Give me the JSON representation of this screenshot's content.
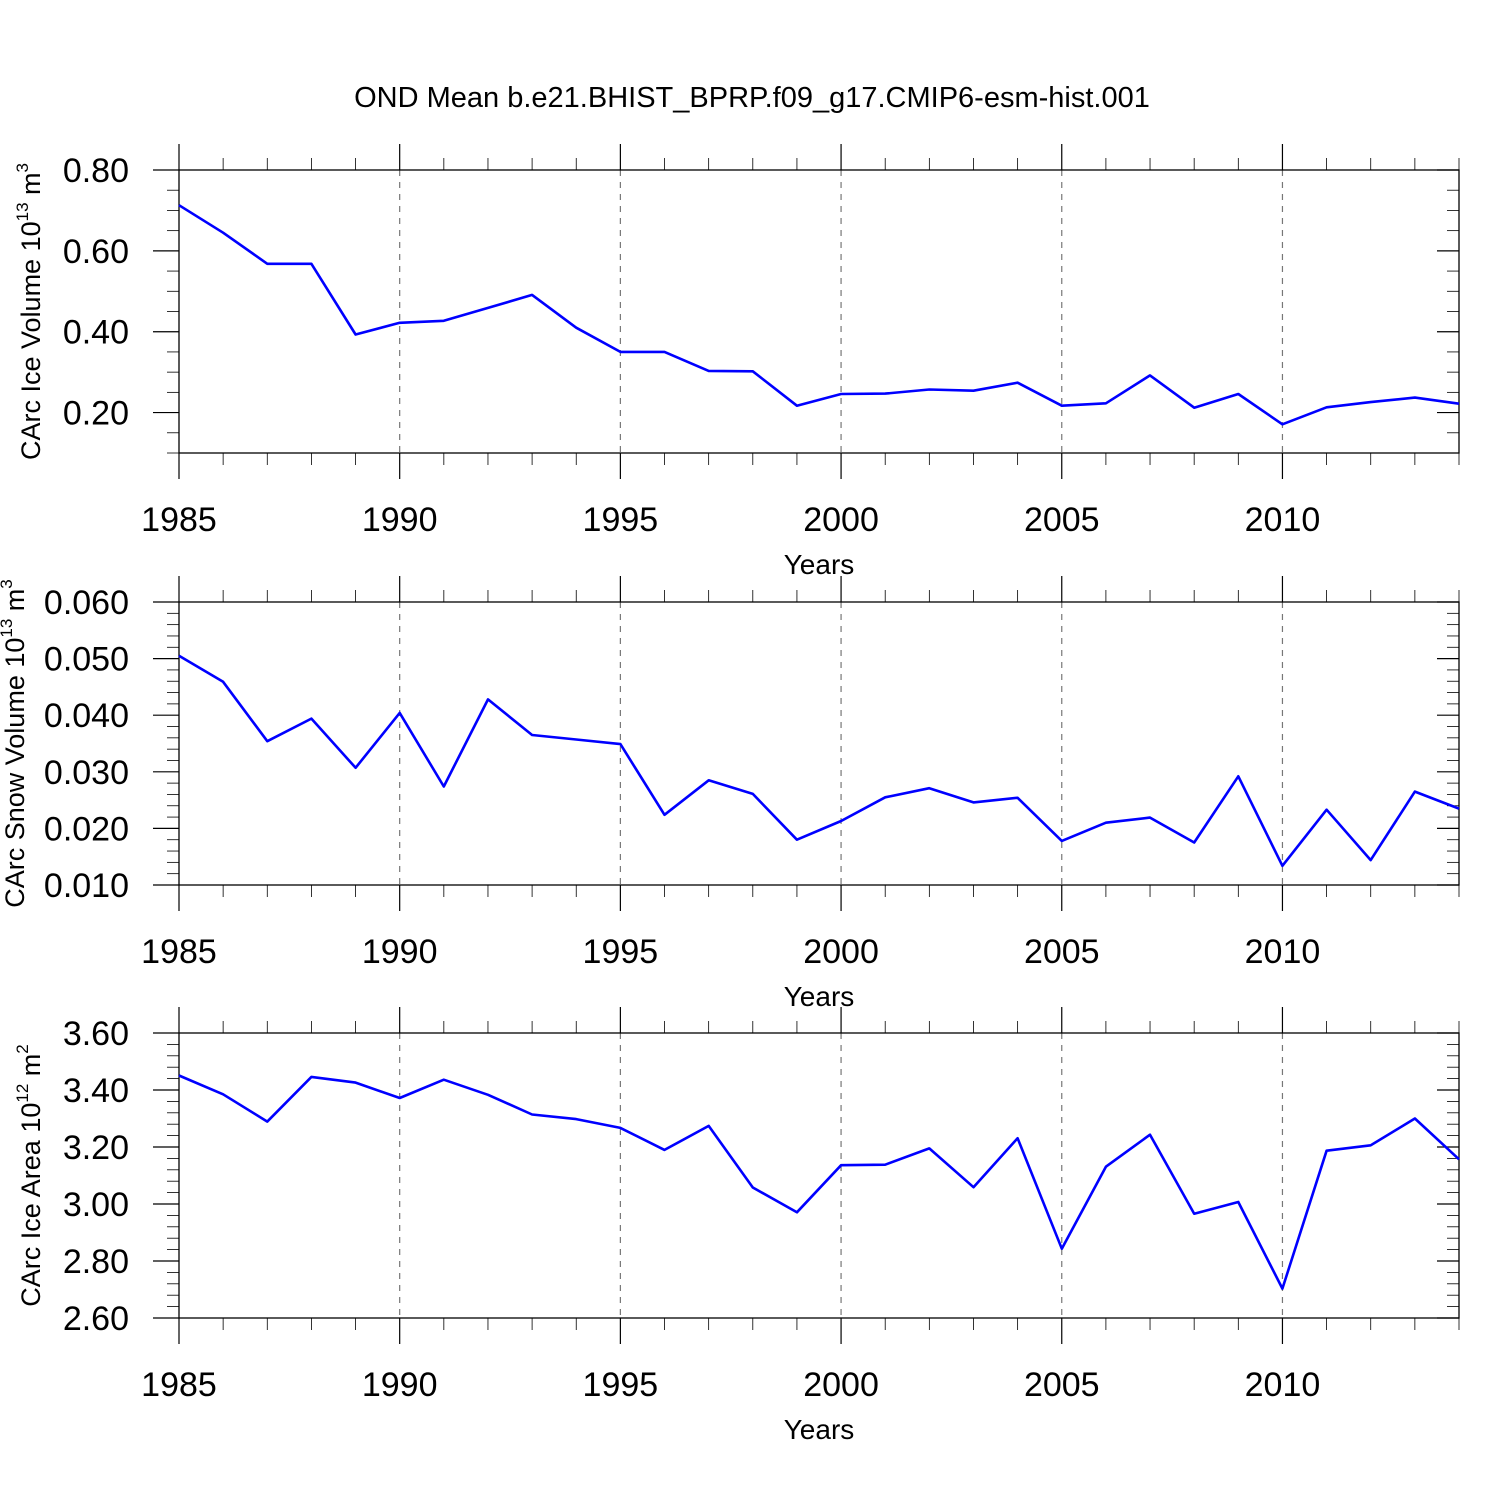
{
  "title": "OND Mean b.e21.BHIST_BPRP.f09_g17.CMIP6-esm-hist.001",
  "line_color": "#0000ff",
  "chart_data": [
    {
      "type": "line",
      "ylabel_main": "CArc Ice Volume 10",
      "ylabel_exp": "13",
      "ylabel_unit": " m",
      "ylabel_unit_exp": "3",
      "xlabel": "Years",
      "xlim": [
        1985,
        2014
      ],
      "ylim": [
        0.1,
        0.8
      ],
      "yticks": [
        0.2,
        0.4,
        0.6,
        0.8
      ],
      "ytick_labels": [
        "0.20",
        "0.40",
        "0.60",
        "0.80"
      ],
      "ymin_step": 0.05,
      "xticks": [
        1985,
        1990,
        1995,
        2000,
        2005,
        2010
      ],
      "xtick_labels": [
        "1985",
        "1990",
        "1995",
        "2000",
        "2005",
        "2010"
      ],
      "grid": "dashed vertical at major x ticks",
      "x": [
        1985,
        1986,
        1987,
        1988,
        1989,
        1990,
        1991,
        1992,
        1993,
        1994,
        1995,
        1996,
        1997,
        1998,
        1999,
        2000,
        2001,
        2002,
        2003,
        2004,
        2005,
        2006,
        2007,
        2008,
        2009,
        2010,
        2011,
        2012,
        2013,
        2014
      ],
      "values": [
        0.713,
        0.645,
        0.568,
        0.568,
        0.393,
        0.422,
        0.427,
        0.459,
        0.491,
        0.41,
        0.35,
        0.35,
        0.303,
        0.302,
        0.217,
        0.246,
        0.247,
        0.257,
        0.254,
        0.274,
        0.217,
        0.223,
        0.292,
        0.212,
        0.246,
        0.171,
        0.213,
        0.226,
        0.237,
        0.222
      ]
    },
    {
      "type": "line",
      "ylabel_main": "CArc Snow Volume 10",
      "ylabel_exp": "13",
      "ylabel_unit": " m",
      "ylabel_unit_exp": "3",
      "xlabel": "Years",
      "xlim": [
        1985,
        2014
      ],
      "ylim": [
        0.01,
        0.06
      ],
      "yticks": [
        0.01,
        0.02,
        0.03,
        0.04,
        0.05,
        0.06
      ],
      "ytick_labels": [
        "0.010",
        "0.020",
        "0.030",
        "0.040",
        "0.050",
        "0.060"
      ],
      "ymin_step": 0.002,
      "xticks": [
        1985,
        1990,
        1995,
        2000,
        2005,
        2010
      ],
      "xtick_labels": [
        "1985",
        "1990",
        "1995",
        "2000",
        "2005",
        "2010"
      ],
      "grid": "dashed vertical at major x ticks",
      "x": [
        1985,
        1986,
        1987,
        1988,
        1989,
        1990,
        1991,
        1992,
        1993,
        1994,
        1995,
        1996,
        1997,
        1998,
        1999,
        2000,
        2001,
        2002,
        2003,
        2004,
        2005,
        2006,
        2007,
        2008,
        2009,
        2010,
        2011,
        2012,
        2013,
        2014
      ],
      "values": [
        0.0505,
        0.0459,
        0.0354,
        0.0394,
        0.0307,
        0.0404,
        0.0274,
        0.0428,
        0.0365,
        0.0357,
        0.0349,
        0.0224,
        0.0285,
        0.0261,
        0.018,
        0.0213,
        0.0255,
        0.0271,
        0.0246,
        0.0254,
        0.0178,
        0.021,
        0.0219,
        0.0175,
        0.0292,
        0.0134,
        0.0233,
        0.0144,
        0.0265,
        0.0235
      ]
    },
    {
      "type": "line",
      "ylabel_main": "CArc Ice Area 10",
      "ylabel_exp": "12",
      "ylabel_unit": " m",
      "ylabel_unit_exp": "2",
      "xlabel": "Years",
      "xlim": [
        1985,
        2014
      ],
      "ylim": [
        2.6,
        3.6
      ],
      "yticks": [
        2.6,
        2.8,
        3.0,
        3.2,
        3.4,
        3.6
      ],
      "ytick_labels": [
        "2.60",
        "2.80",
        "3.00",
        "3.20",
        "3.40",
        "3.60"
      ],
      "ymin_step": 0.04,
      "xticks": [
        1985,
        1990,
        1995,
        2000,
        2005,
        2010
      ],
      "xtick_labels": [
        "1985",
        "1990",
        "1995",
        "2000",
        "2005",
        "2010"
      ],
      "grid": "dashed vertical at major x ticks",
      "x": [
        1985,
        1986,
        1987,
        1988,
        1989,
        1990,
        1991,
        1992,
        1993,
        1994,
        1995,
        1996,
        1997,
        1998,
        1999,
        2000,
        2001,
        2002,
        2003,
        2004,
        2005,
        2006,
        2007,
        2008,
        2009,
        2010,
        2011,
        2012,
        2013,
        2014
      ],
      "values": [
        3.451,
        3.385,
        3.289,
        3.446,
        3.426,
        3.372,
        3.436,
        3.383,
        3.314,
        3.298,
        3.267,
        3.19,
        3.274,
        3.058,
        2.971,
        3.136,
        3.138,
        3.195,
        3.059,
        3.231,
        2.843,
        3.131,
        3.243,
        2.966,
        3.007,
        2.703,
        3.187,
        3.206,
        3.3,
        3.157
      ]
    }
  ]
}
